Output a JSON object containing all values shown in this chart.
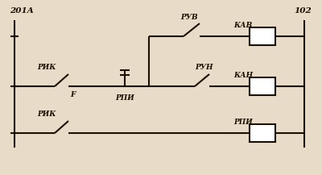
{
  "bg_color": "#e8dcc8",
  "line_color": "#1a0f00",
  "line_width": 1.5,
  "fig_width": 4.0,
  "fig_height": 2.17,
  "dpi": 100,
  "label_201A": "201A",
  "label_102": "102",
  "label_RIK1": "РИК",
  "label_RIK2": "РИК",
  "label_RPI1": "РПИ",
  "label_RPI2": "РПИ",
  "label_RUV": "РУВ",
  "label_RUN": "РУН",
  "label_KAV": "КАВ",
  "label_KAN": "КАН",
  "label_F": "F"
}
